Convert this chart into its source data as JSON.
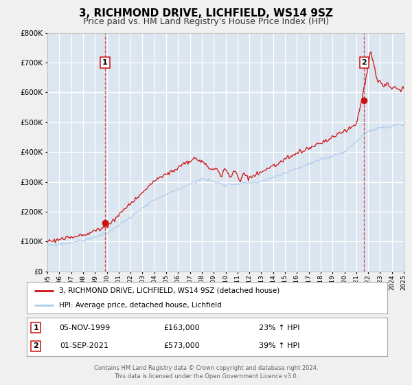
{
  "title": "3, RICHMOND DRIVE, LICHFIELD, WS14 9SZ",
  "subtitle": "Price paid vs. HM Land Registry's House Price Index (HPI)",
  "title_fontsize": 11,
  "subtitle_fontsize": 9,
  "bg_color": "#dce6f0",
  "fig_bg_color": "#f0f0f0",
  "grid_color": "#ffffff",
  "red_color": "#cc1111",
  "blue_color": "#aaccee",
  "ylim": [
    0,
    800000
  ],
  "yticks": [
    0,
    100000,
    200000,
    300000,
    400000,
    500000,
    600000,
    700000,
    800000
  ],
  "year_start": 1995,
  "year_end": 2025,
  "sale1_year": 1999.85,
  "sale1_value": 163000,
  "sale1_label": "1",
  "sale1_date": "05-NOV-1999",
  "sale1_price": "£163,000",
  "sale1_hpi": "23% ↑ HPI",
  "sale2_year": 2021.67,
  "sale2_value": 573000,
  "sale2_label": "2",
  "sale2_date": "01-SEP-2021",
  "sale2_price": "£573,000",
  "sale2_hpi": "39% ↑ HPI",
  "legend_line1": "3, RICHMOND DRIVE, LICHFIELD, WS14 9SZ (detached house)",
  "legend_line2": "HPI: Average price, detached house, Lichfield",
  "footer1": "Contains HM Land Registry data © Crown copyright and database right 2024.",
  "footer2": "This data is licensed under the Open Government Licence v3.0."
}
